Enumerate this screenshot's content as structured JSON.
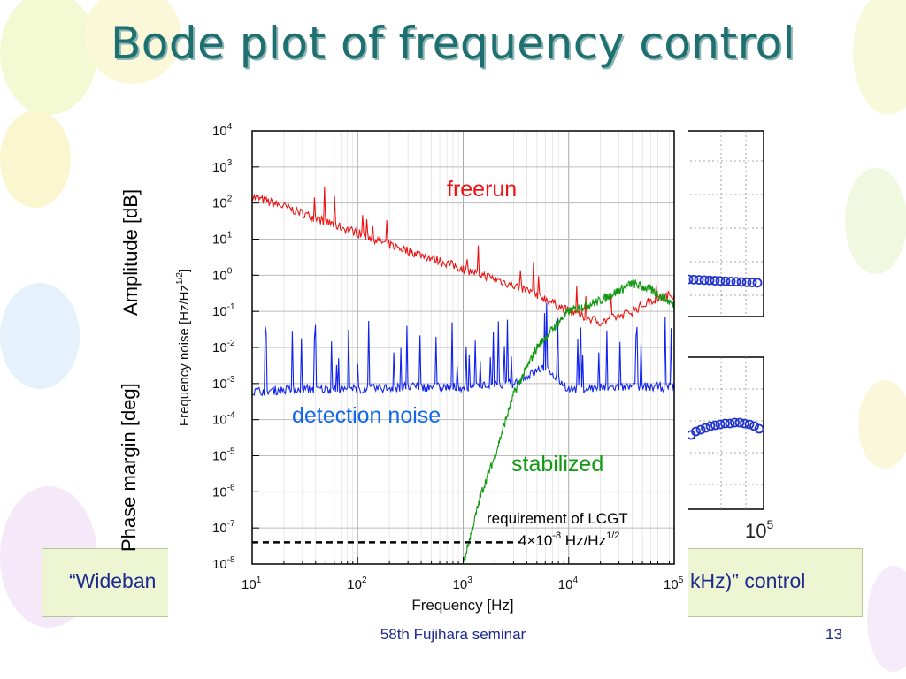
{
  "slide": {
    "title": "Bode plot of frequency control",
    "caption_left": "“Wideban",
    "caption_right": "kHz)” control",
    "footer": "58th Fujihara seminar",
    "page_number": "13"
  },
  "background_bode": {
    "ylabel_top": "Amplitude [dB]",
    "ylabel_bottom": "Phase margin [deg]",
    "x_tick_label": "10^5",
    "marker_color": "#2233cc"
  },
  "chart_data": {
    "type": "line",
    "xlabel": "Frequency [Hz]",
    "ylabel": "Frequency noise [Hz/Hz^1/2]",
    "xscale": "log",
    "yscale": "log",
    "xlim": [
      10,
      100000
    ],
    "ylim": [
      1e-08,
      10000
    ],
    "grid": true,
    "x_ticks": [
      {
        "value": 10,
        "base": "10",
        "exp": "1"
      },
      {
        "value": 100,
        "base": "10",
        "exp": "2"
      },
      {
        "value": 1000,
        "base": "10",
        "exp": "3"
      },
      {
        "value": 10000,
        "base": "10",
        "exp": "4"
      },
      {
        "value": 100000,
        "base": "10",
        "exp": "5"
      }
    ],
    "y_ticks": [
      {
        "value": 10000,
        "base": "10",
        "exp": "4"
      },
      {
        "value": 1000,
        "base": "10",
        "exp": "3"
      },
      {
        "value": 100,
        "base": "10",
        "exp": "2"
      },
      {
        "value": 10,
        "base": "10",
        "exp": "1"
      },
      {
        "value": 1,
        "base": "10",
        "exp": "0"
      },
      {
        "value": 0.1,
        "base": "10",
        "exp": "-1"
      },
      {
        "value": 0.01,
        "base": "10",
        "exp": "-2"
      },
      {
        "value": 0.001,
        "base": "10",
        "exp": "-3"
      },
      {
        "value": 0.0001,
        "base": "10",
        "exp": "-4"
      },
      {
        "value": 1e-05,
        "base": "10",
        "exp": "-5"
      },
      {
        "value": 1e-06,
        "base": "10",
        "exp": "-6"
      },
      {
        "value": 1e-07,
        "base": "10",
        "exp": "-7"
      },
      {
        "value": 1e-08,
        "base": "10",
        "exp": "-8"
      }
    ],
    "series": [
      {
        "name": "freerun",
        "color": "#ee1111",
        "x": [
          10,
          20,
          50,
          100,
          200,
          500,
          1000,
          2000,
          5000,
          10000,
          20000,
          40000,
          60000,
          100000
        ],
        "y": [
          150,
          80,
          30,
          15,
          7,
          3,
          1.5,
          0.8,
          0.3,
          0.1,
          0.05,
          0.1,
          0.2,
          0.3
        ]
      },
      {
        "name": "detection noise",
        "color": "#1122ee",
        "x": [
          10,
          30,
          100,
          300,
          1000,
          3000,
          6000,
          10000,
          30000,
          100000
        ],
        "y": [
          0.0006,
          0.0007,
          0.0007,
          0.0008,
          0.0008,
          0.001,
          0.003,
          0.0007,
          0.0008,
          0.0008
        ]
      },
      {
        "name": "stabilized",
        "color": "#119911",
        "x": [
          1000,
          1500,
          2000,
          3000,
          5000,
          8000,
          10000,
          20000,
          40000,
          60000,
          100000
        ],
        "y": [
          1e-08,
          1e-06,
          1e-05,
          0.0005,
          0.01,
          0.05,
          0.1,
          0.2,
          0.6,
          0.4,
          0.15
        ]
      },
      {
        "name": "requirement of LCGT",
        "color": "#000000",
        "dashed": true,
        "x": [
          10,
          3500
        ],
        "y": [
          4e-08,
          4e-08
        ]
      }
    ],
    "annotations": {
      "freerun": "freerun",
      "detection": "detection noise",
      "stabilized": "stabilized",
      "requirement_line1": "requirement of LCGT",
      "requirement_line2_pre": "4×10",
      "requirement_line2_exp": "-8",
      "requirement_line2_mid": " Hz/Hz",
      "requirement_line2_exp2": "1/2"
    },
    "xlabel_text": "Frequency [Hz]",
    "ylabel_text": "Frequency noise [Hz/Hz",
    "ylabel_exp": "1/2",
    "ylabel_close": "]"
  }
}
